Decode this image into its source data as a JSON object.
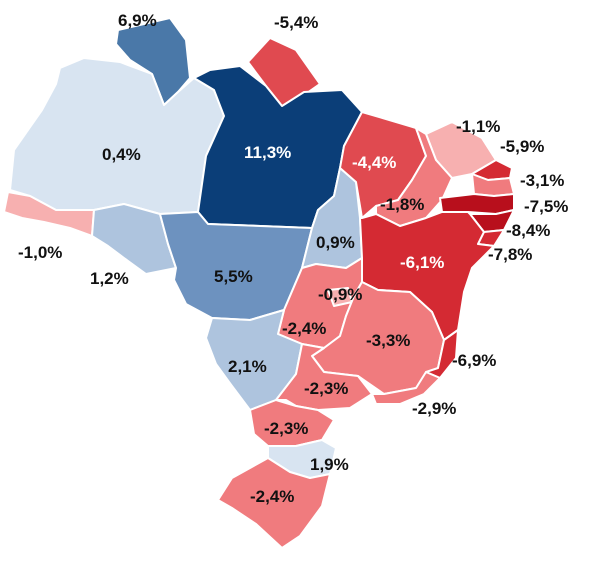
{
  "colors": {
    "dark_blue": "#0b3e78",
    "mid_blue": "#4a78a8",
    "steel_blue": "#6d92bf",
    "light_blue": "#aec4de",
    "pale_blue": "#d8e4f1",
    "pale_red": "#f7b0b0",
    "light_red": "#f07b7e",
    "mid_red": "#e04a50",
    "red": "#d42a33",
    "dark_red": "#b80f1c"
  },
  "states": [
    {
      "id": "RR",
      "value": "6,9%",
      "color": "mid_blue"
    },
    {
      "id": "AP",
      "value": "-5,4%",
      "color": "mid_red"
    },
    {
      "id": "AM",
      "value": "0,4%",
      "color": "pale_blue"
    },
    {
      "id": "PA",
      "value": "11,3%",
      "color": "dark_blue"
    },
    {
      "id": "AC",
      "value": "-1,0%",
      "color": "pale_red"
    },
    {
      "id": "RO",
      "value": "1,2%",
      "color": "light_blue"
    },
    {
      "id": "MT",
      "value": "5,5%",
      "color": "steel_blue"
    },
    {
      "id": "TO",
      "value": "0,9%",
      "color": "light_blue"
    },
    {
      "id": "MA",
      "value": "-4,4%",
      "color": "mid_red"
    },
    {
      "id": "CE",
      "value": "-1,1%",
      "color": "pale_red"
    },
    {
      "id": "PI",
      "value": "-1,8%",
      "color": "light_red"
    },
    {
      "id": "RN",
      "value": "-5,9%",
      "color": "red"
    },
    {
      "id": "PB",
      "value": "-3,1%",
      "color": "light_red"
    },
    {
      "id": "PE",
      "value": "-7,5%",
      "color": "dark_red"
    },
    {
      "id": "AL",
      "value": "-8,4%",
      "color": "dark_red"
    },
    {
      "id": "SE",
      "value": "-7,8%",
      "color": "red"
    },
    {
      "id": "BA",
      "value": "-6,1%",
      "color": "red"
    },
    {
      "id": "GO",
      "value": "-2,4%",
      "color": "light_red"
    },
    {
      "id": "DF",
      "value": "-0,9%",
      "color": "pale_red"
    },
    {
      "id": "MG",
      "value": "-3,3%",
      "color": "light_red"
    },
    {
      "id": "ES",
      "value": "-6,9%",
      "color": "red"
    },
    {
      "id": "MS",
      "value": "2,1%",
      "color": "light_blue"
    },
    {
      "id": "SP",
      "value": "-2,3%",
      "color": "light_red"
    },
    {
      "id": "RJ",
      "value": "-2,9%",
      "color": "light_red"
    },
    {
      "id": "PR",
      "value": "-2,3%",
      "color": "light_red"
    },
    {
      "id": "SC",
      "value": "1,9%",
      "color": "pale_blue"
    },
    {
      "id": "RS",
      "value": "-2,4%",
      "color": "light_red"
    }
  ]
}
